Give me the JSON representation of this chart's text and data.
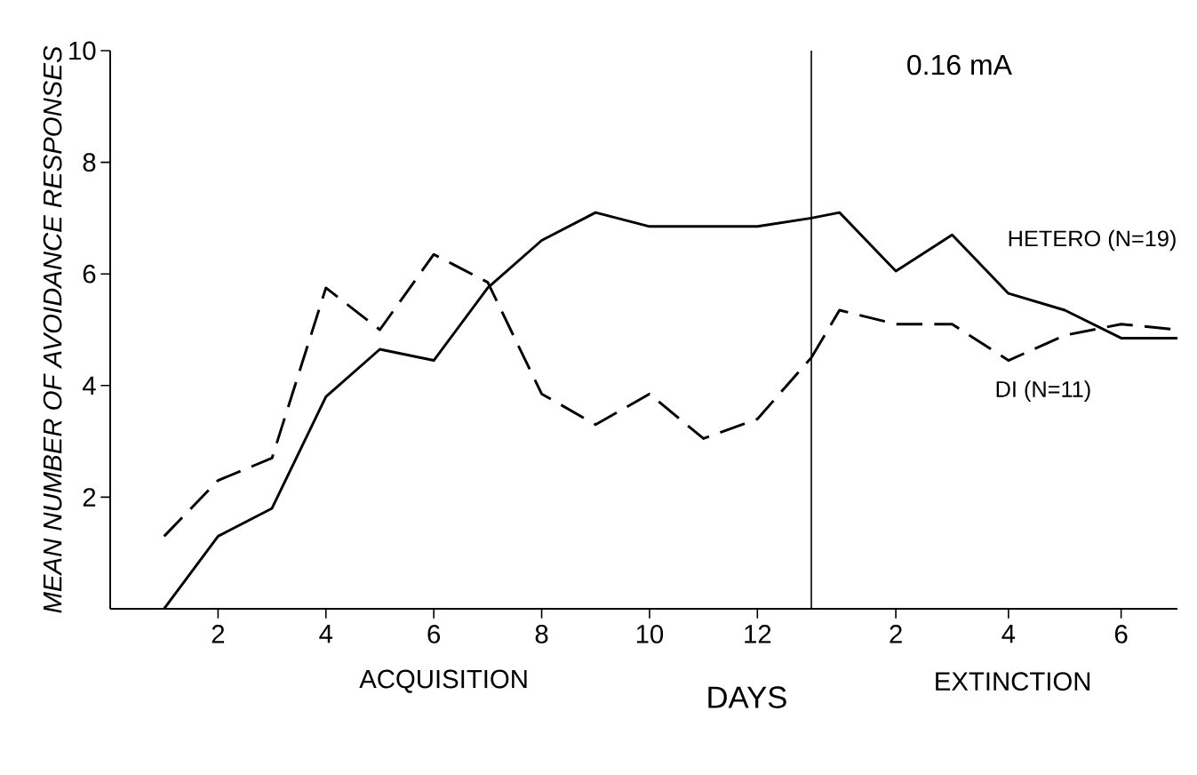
{
  "chart_data": [
    {
      "type": "line",
      "xlabel": "DAYS",
      "ylabel": "*MEAN NUMBER OF AVOIDANCE RESPONSES*",
      "annotations": [
        "ACQUISITION"
      ],
      "x": [
        1,
        2,
        3,
        4,
        5,
        6,
        7,
        8,
        9,
        10,
        11,
        12,
        13
      ],
      "series": [
        {
          "color": "#000000",
          "line_style": "solid",
          "values": [
            0,
            1.3,
            1.8,
            3.8,
            4.65,
            4.45,
            5.75,
            6.6,
            7.1,
            6.85,
            6.85,
            6.85,
            7.0
          ]
        },
        {
          "color": "#000000",
          "line_style": "dashed",
          "values": [
            1.3,
            2.3,
            2.7,
            5.75,
            5.0,
            6.35,
            5.85,
            3.85,
            3.3,
            3.85,
            3.05,
            3.4,
            4.5
          ]
        }
      ],
      "xlim": [
        0,
        13
      ],
      "ylim": [
        0,
        10
      ],
      "xticks": [
        2,
        4,
        6,
        8,
        10,
        12
      ],
      "yticks": [
        2,
        4,
        6,
        8,
        10
      ],
      "ref_lines": [
        {
          "axis": "x",
          "value": 13,
          "color": "#000000",
          "line_style": "solid"
        }
      ]
    },
    {
      "type": "line",
      "annotations": [
        "0.16 mA",
        "EXTINCTION"
      ],
      "x": [
        0.5,
        1,
        2,
        3,
        4,
        5,
        6,
        7
      ],
      "series": [
        {
          "name": "HETERO (N=19)",
          "color": "#000000",
          "line_style": "solid",
          "values": [
            7.0,
            7.1,
            6.05,
            6.7,
            5.65,
            5.35,
            4.85,
            4.85
          ]
        },
        {
          "name": "DI (N=11)",
          "color": "#000000",
          "line_style": "dashed",
          "values": [
            4.5,
            5.35,
            5.1,
            5.1,
            4.45,
            4.9,
            5.1,
            5.0
          ]
        }
      ],
      "xlim": [
        0.5,
        7
      ],
      "ylim": [
        0,
        10
      ],
      "xticks": [
        2,
        4,
        6
      ],
      "tick_labels": "x"
    }
  ]
}
